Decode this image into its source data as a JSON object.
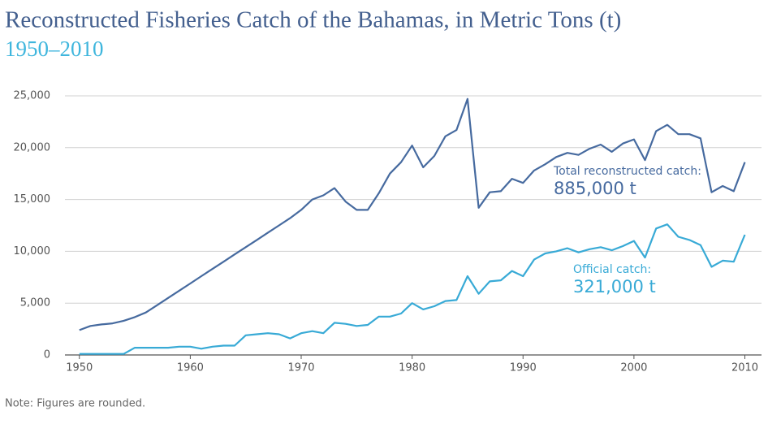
{
  "chart_data": {
    "type": "line",
    "title": "Reconstructed Fisheries Catch of the Bahamas, in Metric Tons (t)",
    "subtitle": "1950–2010",
    "note": "Note: Figures are rounded.",
    "x": [
      1950,
      1951,
      1952,
      1953,
      1954,
      1955,
      1956,
      1957,
      1958,
      1959,
      1960,
      1961,
      1962,
      1963,
      1964,
      1965,
      1966,
      1967,
      1968,
      1969,
      1970,
      1971,
      1972,
      1973,
      1974,
      1975,
      1976,
      1977,
      1978,
      1979,
      1980,
      1981,
      1982,
      1983,
      1984,
      1985,
      1986,
      1987,
      1988,
      1989,
      1990,
      1991,
      1992,
      1993,
      1994,
      1995,
      1996,
      1997,
      1998,
      1999,
      2000,
      2001,
      2002,
      2003,
      2004,
      2005,
      2006,
      2007,
      2008,
      2009,
      2010
    ],
    "series": [
      {
        "name": "Total reconstructed catch:",
        "color": "#466a9f",
        "values": [
          2400,
          2800,
          2950,
          3050,
          3300,
          3650,
          4100,
          4800,
          5500,
          6200,
          6900,
          7600,
          8300,
          9000,
          9700,
          10400,
          11100,
          11800,
          12500,
          13200,
          14000,
          15000,
          15400,
          16100,
          14800,
          14000,
          14000,
          15600,
          17500,
          18600,
          20200,
          18100,
          19200,
          21100,
          21700,
          24700,
          14200,
          15700,
          15800,
          17000,
          16600,
          17800,
          18400,
          19100,
          19500,
          19300,
          19900,
          20300,
          19600,
          20400,
          20800,
          18800,
          21600,
          22200,
          21300,
          21300,
          20900,
          15700,
          16300,
          15800,
          18600
        ]
      },
      {
        "name": "Official catch:",
        "color": "#38aad6",
        "values": [
          100,
          100,
          100,
          100,
          100,
          700,
          700,
          700,
          700,
          800,
          800,
          600,
          800,
          900,
          900,
          1900,
          2000,
          2100,
          2000,
          1600,
          2100,
          2300,
          2100,
          3100,
          3000,
          2800,
          2900,
          3700,
          3700,
          4000,
          5000,
          4400,
          4700,
          5200,
          5300,
          7600,
          5900,
          7100,
          7200,
          8100,
          7600,
          9200,
          9800,
          10000,
          10300,
          9900,
          10200,
          10400,
          10100,
          10500,
          11000,
          9400,
          12200,
          12600,
          11400,
          11100,
          10600,
          8500,
          9100,
          9000,
          11600
        ]
      }
    ],
    "annotations": [
      "885,000 t",
      "321,000 t"
    ],
    "xlim": [
      1948.7,
      2011.5
    ],
    "xticks": [
      1950,
      1960,
      1970,
      1980,
      1990,
      2000,
      2010
    ],
    "ylim": [
      0,
      25000
    ],
    "yticks": [
      0,
      {
        "value": 5000,
        "label": "5,000"
      },
      {
        "value": 10000,
        "label": "10,000"
      },
      {
        "value": 15000,
        "label": "15,000"
      },
      {
        "value": 20000,
        "label": "20,000"
      },
      {
        "value": 25000,
        "label": "25,000"
      }
    ],
    "grid": true
  }
}
